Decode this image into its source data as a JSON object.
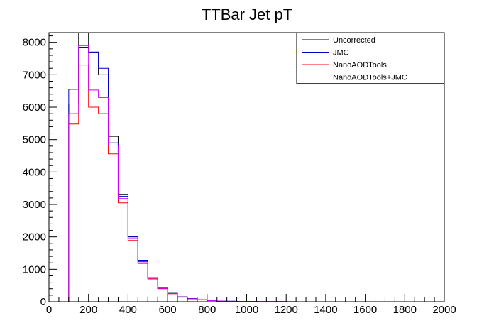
{
  "chart_data": {
    "type": "line",
    "title": "TTBar Jet pT",
    "xlabel": "",
    "ylabel": "",
    "xlim": [
      0,
      2000
    ],
    "ylim": [
      0,
      8300
    ],
    "xticks": [
      "0",
      "200",
      "400",
      "600",
      "800",
      "1000",
      "1200",
      "1400",
      "1600",
      "1800",
      "2000"
    ],
    "yticks": [
      "0",
      "1000",
      "2000",
      "3000",
      "4000",
      "5000",
      "6000",
      "7000",
      "8000"
    ],
    "bin_edges": [
      0,
      50,
      100,
      150,
      200,
      250,
      300,
      350,
      400,
      450,
      500,
      550,
      600,
      650,
      700,
      750,
      800,
      850,
      900,
      950,
      1000,
      1050,
      1100,
      1150,
      1200,
      1250,
      1300,
      1350,
      1400,
      1450,
      1500,
      1550,
      1600,
      1650,
      1700,
      1750,
      1800,
      1850,
      1900,
      1950,
      2000
    ],
    "grid": false,
    "legend_position": "top-right",
    "series": [
      {
        "name": "Uncorrected",
        "color": "#000000",
        "values": [
          0,
          0,
          6100,
          8400,
          7700,
          7000,
          5100,
          3300,
          2000,
          1250,
          740,
          420,
          260,
          150,
          95,
          60,
          35,
          22,
          14,
          9,
          6,
          4,
          3,
          2,
          2,
          1,
          1,
          1,
          0,
          0,
          0,
          0,
          0,
          0,
          0,
          0,
          0,
          0,
          0,
          0
        ]
      },
      {
        "name": "JMC",
        "color": "#0000cc",
        "values": [
          0,
          0,
          6550,
          7850,
          7700,
          7200,
          4900,
          3250,
          2000,
          1260,
          740,
          420,
          255,
          148,
          92,
          58,
          34,
          21,
          13,
          8,
          5,
          4,
          3,
          2,
          1,
          1,
          1,
          0,
          0,
          0,
          0,
          0,
          0,
          0,
          0,
          0,
          0,
          0,
          0,
          0
        ]
      },
      {
        "name": "NanoAODTools",
        "color": "#ff0000",
        "values": [
          0,
          0,
          5480,
          7300,
          6000,
          5800,
          4560,
          3050,
          1890,
          1180,
          700,
          400,
          245,
          140,
          88,
          55,
          32,
          20,
          12,
          8,
          5,
          3,
          2,
          2,
          1,
          1,
          1,
          0,
          0,
          0,
          0,
          0,
          0,
          0,
          0,
          0,
          0,
          0,
          0,
          0
        ]
      },
      {
        "name": "NanoAODTools+JMC",
        "color": "#cc00ff",
        "values": [
          0,
          0,
          5800,
          7900,
          6530,
          6300,
          4830,
          3180,
          1950,
          1230,
          725,
          410,
          250,
          145,
          90,
          57,
          33,
          21,
          13,
          8,
          5,
          4,
          3,
          2,
          1,
          1,
          1,
          0,
          0,
          0,
          0,
          0,
          0,
          0,
          0,
          0,
          0,
          0,
          0,
          0
        ]
      }
    ]
  }
}
